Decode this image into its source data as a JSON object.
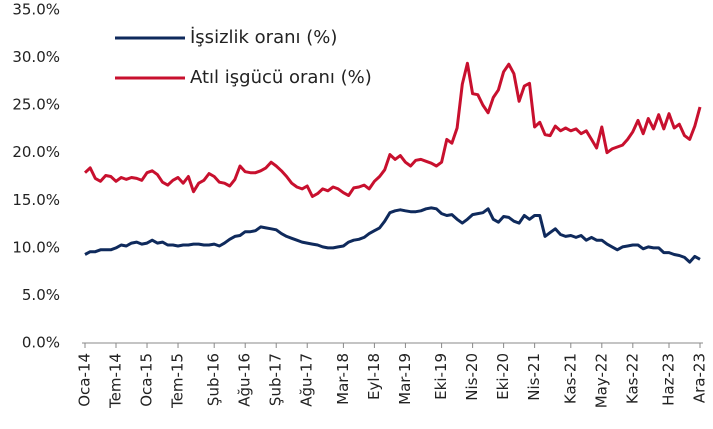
{
  "chart_data": {
    "type": "line",
    "categories": [
      "Oca-14",
      null,
      null,
      null,
      null,
      null,
      "Tem-14",
      null,
      null,
      null,
      null,
      null,
      "Oca-15",
      null,
      null,
      null,
      null,
      null,
      "Tem-15",
      null,
      null,
      null,
      null,
      null,
      null,
      "Şub-16",
      null,
      null,
      null,
      null,
      null,
      "Ağu-16",
      null,
      null,
      null,
      null,
      null,
      "Şub-17",
      null,
      null,
      null,
      null,
      null,
      "Ağu-17",
      null,
      null,
      null,
      null,
      null,
      null,
      "Mar-18",
      null,
      null,
      null,
      null,
      null,
      "Eyl-18",
      null,
      null,
      null,
      null,
      null,
      "Mar-19",
      null,
      null,
      null,
      null,
      null,
      null,
      "Eki-19",
      null,
      null,
      null,
      null,
      null,
      "Nis-20",
      null,
      null,
      null,
      null,
      null,
      "Eki-20",
      null,
      null,
      null,
      null,
      null,
      "Nis-21",
      null,
      null,
      null,
      null,
      null,
      null,
      "Kas-21",
      null,
      null,
      null,
      null,
      null,
      "May-22",
      null,
      null,
      null,
      null,
      null,
      "Kas-22",
      null,
      null,
      null,
      null,
      null,
      null,
      "Haz-23",
      null,
      null,
      null,
      null,
      null,
      "Ara-23"
    ],
    "series": [
      {
        "name": "İşsizlik oranı (%)",
        "color": "#0f2a5c",
        "values": [
          9.3,
          9.6,
          9.6,
          9.8,
          9.8,
          9.8,
          10.0,
          10.3,
          10.2,
          10.5,
          10.6,
          10.4,
          10.5,
          10.8,
          10.5,
          10.6,
          10.3,
          10.3,
          10.2,
          10.3,
          10.3,
          10.4,
          10.4,
          10.3,
          10.3,
          10.4,
          10.2,
          10.5,
          10.9,
          11.2,
          11.3,
          11.7,
          11.7,
          11.8,
          12.2,
          12.1,
          12.0,
          11.9,
          11.5,
          11.2,
          11.0,
          10.8,
          10.6,
          10.5,
          10.4,
          10.3,
          10.1,
          10.0,
          10.0,
          10.1,
          10.2,
          10.6,
          10.8,
          10.9,
          11.1,
          11.5,
          11.8,
          12.1,
          12.8,
          13.7,
          13.9,
          14.0,
          13.9,
          13.8,
          13.8,
          13.9,
          14.1,
          14.2,
          14.1,
          13.6,
          13.4,
          13.5,
          13.0,
          12.6,
          13.0,
          13.5,
          13.6,
          13.7,
          14.1,
          13.0,
          12.7,
          13.3,
          13.2,
          12.8,
          12.6,
          13.4,
          13.0,
          13.4,
          13.4,
          11.2,
          11.6,
          12.0,
          11.4,
          11.2,
          11.3,
          11.1,
          11.3,
          10.8,
          11.1,
          10.8,
          10.8,
          10.4,
          10.1,
          9.8,
          10.1,
          10.2,
          10.3,
          10.3,
          9.9,
          10.1,
          10.0,
          10.0,
          9.5,
          9.5,
          9.3,
          9.2,
          9.0,
          8.5,
          9.1,
          8.8
        ]
      },
      {
        "name": "Atıl işgücü oranı (%)",
        "color": "#c8102e",
        "values": [
          17.9,
          18.4,
          17.3,
          17.0,
          17.6,
          17.5,
          17.0,
          17.4,
          17.2,
          17.4,
          17.3,
          17.1,
          17.9,
          18.1,
          17.7,
          16.9,
          16.6,
          17.1,
          17.4,
          16.8,
          17.5,
          15.9,
          16.8,
          17.1,
          17.8,
          17.5,
          16.9,
          16.8,
          16.5,
          17.2,
          18.6,
          18.0,
          17.9,
          17.9,
          18.1,
          18.4,
          19.0,
          18.6,
          18.1,
          17.5,
          16.8,
          16.4,
          16.2,
          16.5,
          15.4,
          15.7,
          16.2,
          16.0,
          16.4,
          16.2,
          15.8,
          15.5,
          16.3,
          16.4,
          16.6,
          16.2,
          17.0,
          17.5,
          18.2,
          19.8,
          19.3,
          19.7,
          19.0,
          18.6,
          19.2,
          19.3,
          19.1,
          18.9,
          18.6,
          19.0,
          21.4,
          21.0,
          22.6,
          27.2,
          29.4,
          26.2,
          26.1,
          25.0,
          24.2,
          25.8,
          26.6,
          28.5,
          29.3,
          28.3,
          25.4,
          27.0,
          27.3,
          22.7,
          23.2,
          21.9,
          21.8,
          22.8,
          22.3,
          22.6,
          22.3,
          22.5,
          22.0,
          22.3,
          21.4,
          20.5,
          22.7,
          20.0,
          20.4,
          20.6,
          20.8,
          21.4,
          22.2,
          23.4,
          22.0,
          23.6,
          22.5,
          24.0,
          22.5,
          24.1,
          22.6,
          23.0,
          21.8,
          21.4,
          22.8,
          24.8
        ]
      }
    ],
    "ylim": [
      0,
      35
    ],
    "yticks": [
      {
        "value": 0,
        "label": "0.0%"
      },
      {
        "value": 5,
        "label": "5.0%"
      },
      {
        "value": 10,
        "label": "10.0%"
      },
      {
        "value": 15,
        "label": "15.0%"
      },
      {
        "value": 20,
        "label": "20.0%"
      },
      {
        "value": 25,
        "label": "25.0%"
      },
      {
        "value": 30,
        "label": "30.0%"
      },
      {
        "value": 35,
        "label": "35.0%"
      }
    ],
    "grid": false,
    "legend": "upper left"
  }
}
